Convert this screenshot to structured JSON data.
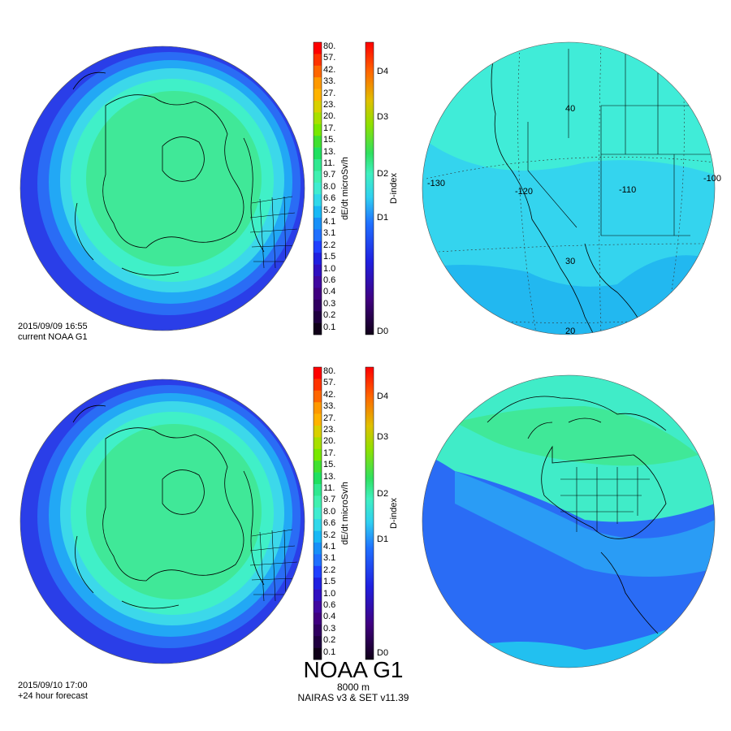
{
  "panels": {
    "current": {
      "date": "2015/09/09 16:55",
      "label": "current NOAA G1"
    },
    "forecast": {
      "date": "2015/09/10 17:00",
      "label": "+24 hour forecast"
    }
  },
  "product": {
    "title": "NOAA G1",
    "altitude": "8000 m",
    "model": "NAIRAS v3 & SET v11.39"
  },
  "dose_scale": {
    "label": "dE/dt microSv/h",
    "ticks": [
      "80.",
      "57.",
      "42.",
      "33.",
      "27.",
      "23.",
      "20.",
      "17.",
      "15.",
      "13.",
      "11.",
      "9.7",
      "8.0",
      "6.6",
      "5.2",
      "4.1",
      "3.1",
      "2.2",
      "1.5",
      "1.0",
      "0.6",
      "0.4",
      "0.3",
      "0.2",
      "0.1"
    ],
    "colors": [
      "#ff0000",
      "#ff3300",
      "#ff6600",
      "#ff9900",
      "#ffb300",
      "#d9d000",
      "#a8e000",
      "#78e800",
      "#40e030",
      "#20e060",
      "#30e890",
      "#40f0b0",
      "#40ecd0",
      "#30d8ea",
      "#18b8f5",
      "#1890f8",
      "#2070ff",
      "#2040ff",
      "#2020e0",
      "#3010c0",
      "#4008a0",
      "#400080",
      "#300060",
      "#200040",
      "#100018"
    ]
  },
  "d_index_scale": {
    "label": "D-index",
    "ticks": [
      "D4",
      "D3",
      "D2",
      "D1",
      "D0"
    ]
  },
  "map_labels": {
    "lon": [
      "-130",
      "-120",
      "-110",
      "-100"
    ],
    "lat": [
      "40",
      "30",
      "20"
    ]
  }
}
